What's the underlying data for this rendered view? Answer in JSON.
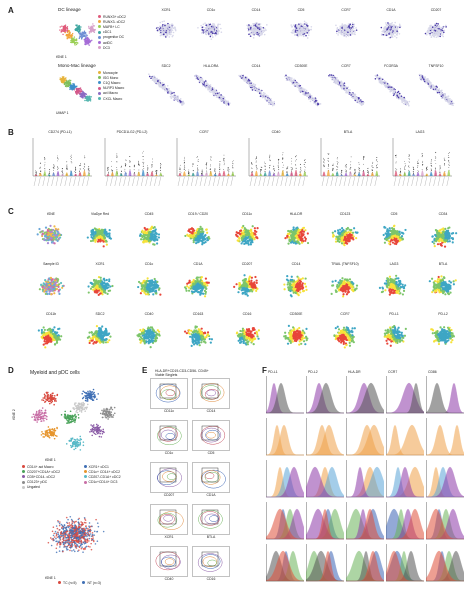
{
  "panels": {
    "A": {
      "label": "A",
      "row1_group_title": "DC lineage",
      "row1_legend": [
        {
          "text": "RUNX3+ cDC2",
          "color": "#e05b7b"
        },
        {
          "text": "RUNX3- cDC2",
          "color": "#f2a53a"
        },
        {
          "text": "MAFB+ LC",
          "color": "#9bcf55"
        },
        {
          "text": "cDC1",
          "color": "#3ea6a0"
        },
        {
          "text": "progenitor DC",
          "color": "#6e8fd4"
        },
        {
          "text": "actDC",
          "color": "#a46bd6"
        },
        {
          "text": "DC3",
          "color": "#d7a0c9"
        }
      ],
      "row1_markers": [
        "XCR1",
        "CD1c",
        "CD14",
        "CD5",
        "CCR7",
        "CD1A",
        "CD207"
      ],
      "row2_group_title": "Mono-Mac lineage",
      "row2_legend": [
        {
          "text": "Monocyte",
          "color": "#e6b33a"
        },
        {
          "text": "ISG Mono",
          "color": "#7fbf5c"
        },
        {
          "text": "C1Q Macro",
          "color": "#3e8fc9"
        },
        {
          "text": "NLRP3 Macro",
          "color": "#d3588a"
        },
        {
          "text": "act Macro",
          "color": "#8b6cc3"
        },
        {
          "text": "CXCL Macro",
          "color": "#57b7b0"
        }
      ],
      "row2_markers": [
        "SDC2",
        "HLA-DRA",
        "CD14",
        "CD300E",
        "CCR7",
        "FCGR3A",
        "TNFSF10"
      ],
      "axis_x": "tSNE 1",
      "axis_y": "tSNE 2",
      "axis_x2": "UMAP 1",
      "axis_y2": "UMAP 2"
    },
    "B": {
      "label": "B",
      "titles": [
        "CD274 (PD-L1)",
        "PDCD1LG2 (PD-L2)",
        "CCR7",
        "CD40",
        "BTLA",
        "LAG3"
      ]
    },
    "C": {
      "label": "C",
      "row1": [
        "tSNE",
        "ViaDye Red",
        "CD45",
        "CD19 / CD20",
        "CD11c",
        "HLA-DR",
        "CD123",
        "CD5",
        "CD34"
      ],
      "row2": [
        "Sample ID",
        "XCR1",
        "CD1c",
        "CD1A",
        "CD207",
        "CD14",
        "TRAIL (TNFSF10)",
        "LAG3",
        "BTLA"
      ],
      "row3": [
        "CD11b",
        "SDC2",
        "CD40",
        "CD163",
        "CD16",
        "CD300E",
        "CCR7",
        "PD-L1",
        "PD-L2"
      ]
    },
    "D": {
      "label": "D",
      "title": "Myeloid and pDC cells",
      "legend": [
        {
          "text": "CD14+ act Macro",
          "color": "#d8493e"
        },
        {
          "text": "XCR1+ cDC1",
          "color": "#3f6fb5"
        },
        {
          "text": "CD207+CD1A+ cDC2",
          "color": "#4aa35a"
        },
        {
          "text": "CD1c+ CD14+ cDC2",
          "color": "#e6952d"
        },
        {
          "text": "CD5+CD14- cDC2",
          "color": "#8a5ba6"
        },
        {
          "text": "CD207-CD1A+ cDC2",
          "color": "#58b9c7"
        },
        {
          "text": "CD123+ pDC",
          "color": "#8c8c8c"
        },
        {
          "text": "CD1c+CD14+ DC3",
          "color": "#c86fa6"
        },
        {
          "text": "Ungated",
          "color": "#c8c8c8"
        }
      ],
      "legend2": [
        {
          "text": "TC (n=5)",
          "color": "#d8493e"
        },
        {
          "text": "NT (n=3)",
          "color": "#3f6fb5"
        }
      ],
      "axis_x": "tSNE 1",
      "axis_y": "tSNE 2"
    },
    "E": {
      "label": "E",
      "header": "HLA-DR+CD19-CD3-CD56- CD45+ Viable Singlets",
      "axes": [
        "CD11c",
        "CD14",
        "CD1c",
        "CD5",
        "CD207",
        "CD1A",
        "XCR1",
        "BTLA",
        "CD40",
        "CD16"
      ]
    },
    "F": {
      "label": "F",
      "columns": [
        "PD-L1",
        "PD-L2",
        "HLA-DR",
        "CCR7",
        "CD86"
      ]
    }
  }
}
